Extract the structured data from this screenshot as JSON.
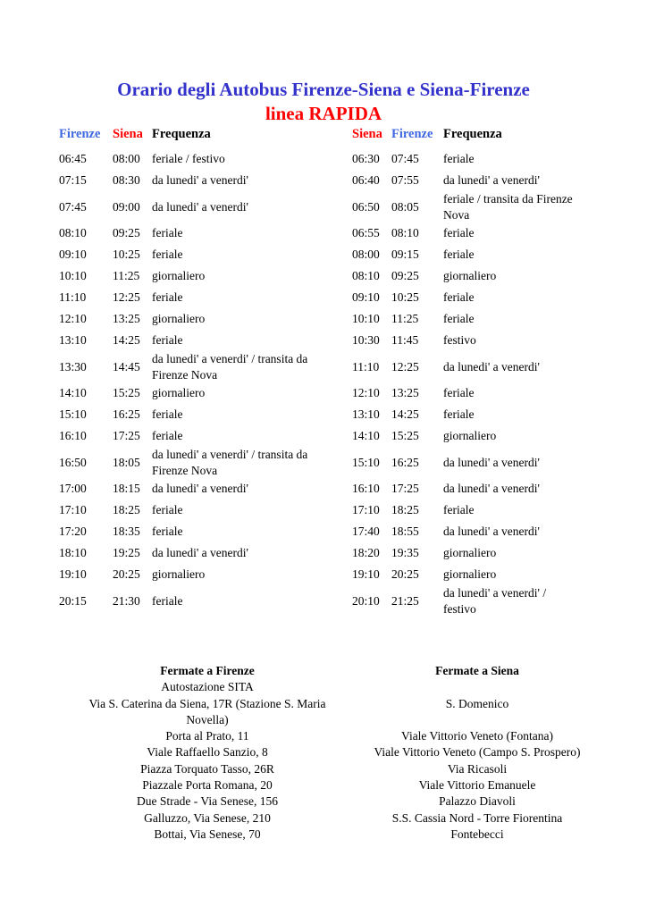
{
  "title": {
    "line1": "Orario degli Autobus Firenze-Siena e Siena-Firenze",
    "line2": "linea RAPIDA"
  },
  "colors": {
    "title_blue": "#3333cc",
    "header_blue": "#4169e1",
    "accent_red": "#ff0000",
    "text": "#000000"
  },
  "timetable": {
    "left_headers": {
      "dep": "Firenze",
      "arr": "Siena",
      "freq": "Frequenza"
    },
    "right_headers": {
      "dep": "Siena",
      "arr": "Firenze",
      "freq": "Frequenza"
    },
    "rows": [
      {
        "l_dep": "06:45",
        "l_arr": "08:00",
        "l_freq": "feriale / festivo",
        "r_dep": "06:30",
        "r_arr": "07:45",
        "r_freq": "feriale"
      },
      {
        "l_dep": "07:15",
        "l_arr": "08:30",
        "l_freq": "da lunedi' a venerdi'",
        "r_dep": "06:40",
        "r_arr": "07:55",
        "r_freq": "da lunedi' a venerdi'"
      },
      {
        "l_dep": "07:45",
        "l_arr": "09:00",
        "l_freq": "da lunedi' a venerdi'",
        "r_dep": "06:50",
        "r_arr": "08:05",
        "r_freq": "feriale / transita da Firenze\nNova"
      },
      {
        "l_dep": "08:10",
        "l_arr": "09:25",
        "l_freq": "feriale",
        "r_dep": "06:55",
        "r_arr": "08:10",
        "r_freq": "feriale"
      },
      {
        "l_dep": "09:10",
        "l_arr": "10:25",
        "l_freq": "feriale",
        "r_dep": "08:00",
        "r_arr": "09:15",
        "r_freq": "feriale"
      },
      {
        "l_dep": "10:10",
        "l_arr": "11:25",
        "l_freq": "giornaliero",
        "r_dep": "08:10",
        "r_arr": "09:25",
        "r_freq": "giornaliero"
      },
      {
        "l_dep": "11:10",
        "l_arr": "12:25",
        "l_freq": "feriale",
        "r_dep": "09:10",
        "r_arr": "10:25",
        "r_freq": "feriale"
      },
      {
        "l_dep": "12:10",
        "l_arr": "13:25",
        "l_freq": "giornaliero",
        "r_dep": "10:10",
        "r_arr": "11:25",
        "r_freq": "feriale"
      },
      {
        "l_dep": "13:10",
        "l_arr": "14:25",
        "l_freq": "feriale",
        "r_dep": "10:30",
        "r_arr": "11:45",
        "r_freq": "festivo"
      },
      {
        "l_dep": "13:30",
        "l_arr": "14:45",
        "l_freq": "da lunedi' a venerdi' / transita da\nFirenze Nova",
        "r_dep": "11:10",
        "r_arr": "12:25",
        "r_freq": "da lunedi' a venerdi'"
      },
      {
        "l_dep": "14:10",
        "l_arr": "15:25",
        "l_freq": "giornaliero",
        "r_dep": "12:10",
        "r_arr": "13:25",
        "r_freq": "feriale"
      },
      {
        "l_dep": "15:10",
        "l_arr": "16:25",
        "l_freq": "feriale",
        "r_dep": "13:10",
        "r_arr": "14:25",
        "r_freq": "feriale"
      },
      {
        "l_dep": "16:10",
        "l_arr": "17:25",
        "l_freq": "feriale",
        "r_dep": "14:10",
        "r_arr": "15:25",
        "r_freq": "giornaliero"
      },
      {
        "l_dep": "16:50",
        "l_arr": "18:05",
        "l_freq": "da lunedi' a venerdi' / transita da\nFirenze Nova",
        "r_dep": "15:10",
        "r_arr": "16:25",
        "r_freq": "da lunedi' a venerdi'"
      },
      {
        "l_dep": "17:00",
        "l_arr": "18:15",
        "l_freq": "da lunedi' a venerdi'",
        "r_dep": "16:10",
        "r_arr": "17:25",
        "r_freq": "da lunedi' a venerdi'"
      },
      {
        "l_dep": "17:10",
        "l_arr": "18:25",
        "l_freq": "feriale",
        "r_dep": "17:10",
        "r_arr": "18:25",
        "r_freq": "feriale"
      },
      {
        "l_dep": "17:20",
        "l_arr": "18:35",
        "l_freq": "feriale",
        "r_dep": "17:40",
        "r_arr": "18:55",
        "r_freq": "da lunedi' a venerdi'"
      },
      {
        "l_dep": "18:10",
        "l_arr": "19:25",
        "l_freq": "da lunedi' a venerdi'",
        "r_dep": "18:20",
        "r_arr": "19:35",
        "r_freq": "giornaliero"
      },
      {
        "l_dep": "19:10",
        "l_arr": "20:25",
        "l_freq": "giornaliero",
        "r_dep": "19:10",
        "r_arr": "20:25",
        "r_freq": "giornaliero"
      },
      {
        "l_dep": "20:15",
        "l_arr": "21:30",
        "l_freq": "feriale",
        "r_dep": "20:10",
        "r_arr": "21:25",
        "r_freq": "da lunedi' a venerdi' /\nfestivo"
      }
    ]
  },
  "stops": {
    "firenze_header": "Fermate a Firenze",
    "siena_header": "Fermate a Siena",
    "rows": [
      {
        "firenze": "Autostazione SITA",
        "siena": ""
      },
      {
        "firenze": "Via S. Caterina da Siena, 17R (Stazione S. Maria\nNovella)",
        "siena": "S. Domenico"
      },
      {
        "firenze": "Porta al Prato, 11",
        "siena": "Viale Vittorio Veneto (Fontana)"
      },
      {
        "firenze": "Viale Raffaello Sanzio, 8",
        "siena": "Viale Vittorio Veneto (Campo S. Prospero)"
      },
      {
        "firenze": "Piazza Torquato Tasso, 26R",
        "siena": "Via Ricasoli"
      },
      {
        "firenze": "Piazzale Porta Romana, 20",
        "siena": "Viale Vittorio Emanuele"
      },
      {
        "firenze": "Due Strade - Via Senese, 156",
        "siena": "Palazzo Diavoli"
      },
      {
        "firenze": "Galluzzo, Via Senese, 210",
        "siena": "S.S. Cassia Nord - Torre Fiorentina"
      },
      {
        "firenze": "Bottai, Via Senese, 70",
        "siena": "Fontebecci"
      }
    ]
  }
}
